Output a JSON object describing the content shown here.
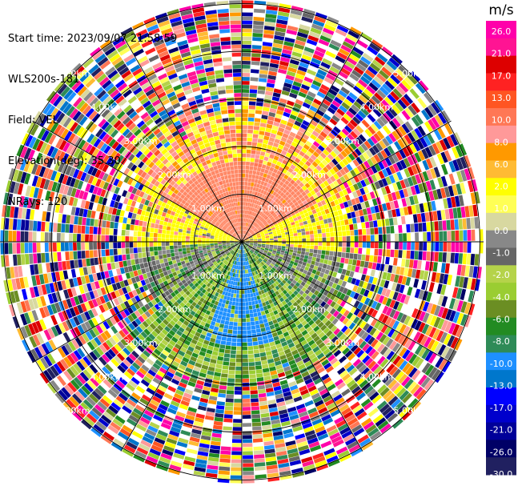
{
  "header": {
    "start_time": "Start time: 2023/09/07 21:58:59",
    "instrument": "WLS200s-181",
    "field": "Field: VEL",
    "elevation": "Elevation(deg): 35.30",
    "nrays": "NRays: 120"
  },
  "chart_data": {
    "type": "heatmap",
    "projection": "polar-ppi",
    "field": "VEL",
    "units": "m/s",
    "n_rays": 120,
    "max_range_km": 5.0,
    "range_ring_labels": [
      "1.00km",
      "2.00km",
      "3.00km",
      "4.00km",
      "5.00km"
    ],
    "colorbar": {
      "label": "m/s",
      "ticks": [
        "26.0",
        "21.0",
        "17.0",
        "13.0",
        "10.0",
        "8.0",
        "6.0",
        "2.0",
        "1.0",
        "0.0",
        "-1.0",
        "-2.0",
        "-4.0",
        "-6.0",
        "-8.0",
        "-10.0",
        "-13.0",
        "-17.0",
        "-21.0",
        "-26.0",
        "-30.0"
      ],
      "colors": [
        "#ff00aa",
        "#ff1493",
        "#dd0000",
        "#ff2222",
        "#ff5522",
        "#ff7755",
        "#ff9999",
        "#ff9900",
        "#ffbb33",
        "#ffff00",
        "#ffff55",
        "#d8d8a0",
        "#888888",
        "#666666",
        "#b5d34a",
        "#9acd32",
        "#6b8e23",
        "#228b22",
        "#2e8b57",
        "#1e90ff",
        "#0077cc",
        "#0000ff",
        "#0000cc",
        "#000099",
        "#000066",
        "#202060"
      ]
    },
    "pattern": {
      "near_north_sector": "orange/salmon (positive, ~6 to 10 m/s)",
      "near_east_west": "yellow (~2 m/s)",
      "near_south_sector": "green (negative, ~-2 to -6 m/s) with blue core (~-8 m/s)",
      "outer_ring": "noisy random speckle beyond ~2.6 km"
    }
  }
}
